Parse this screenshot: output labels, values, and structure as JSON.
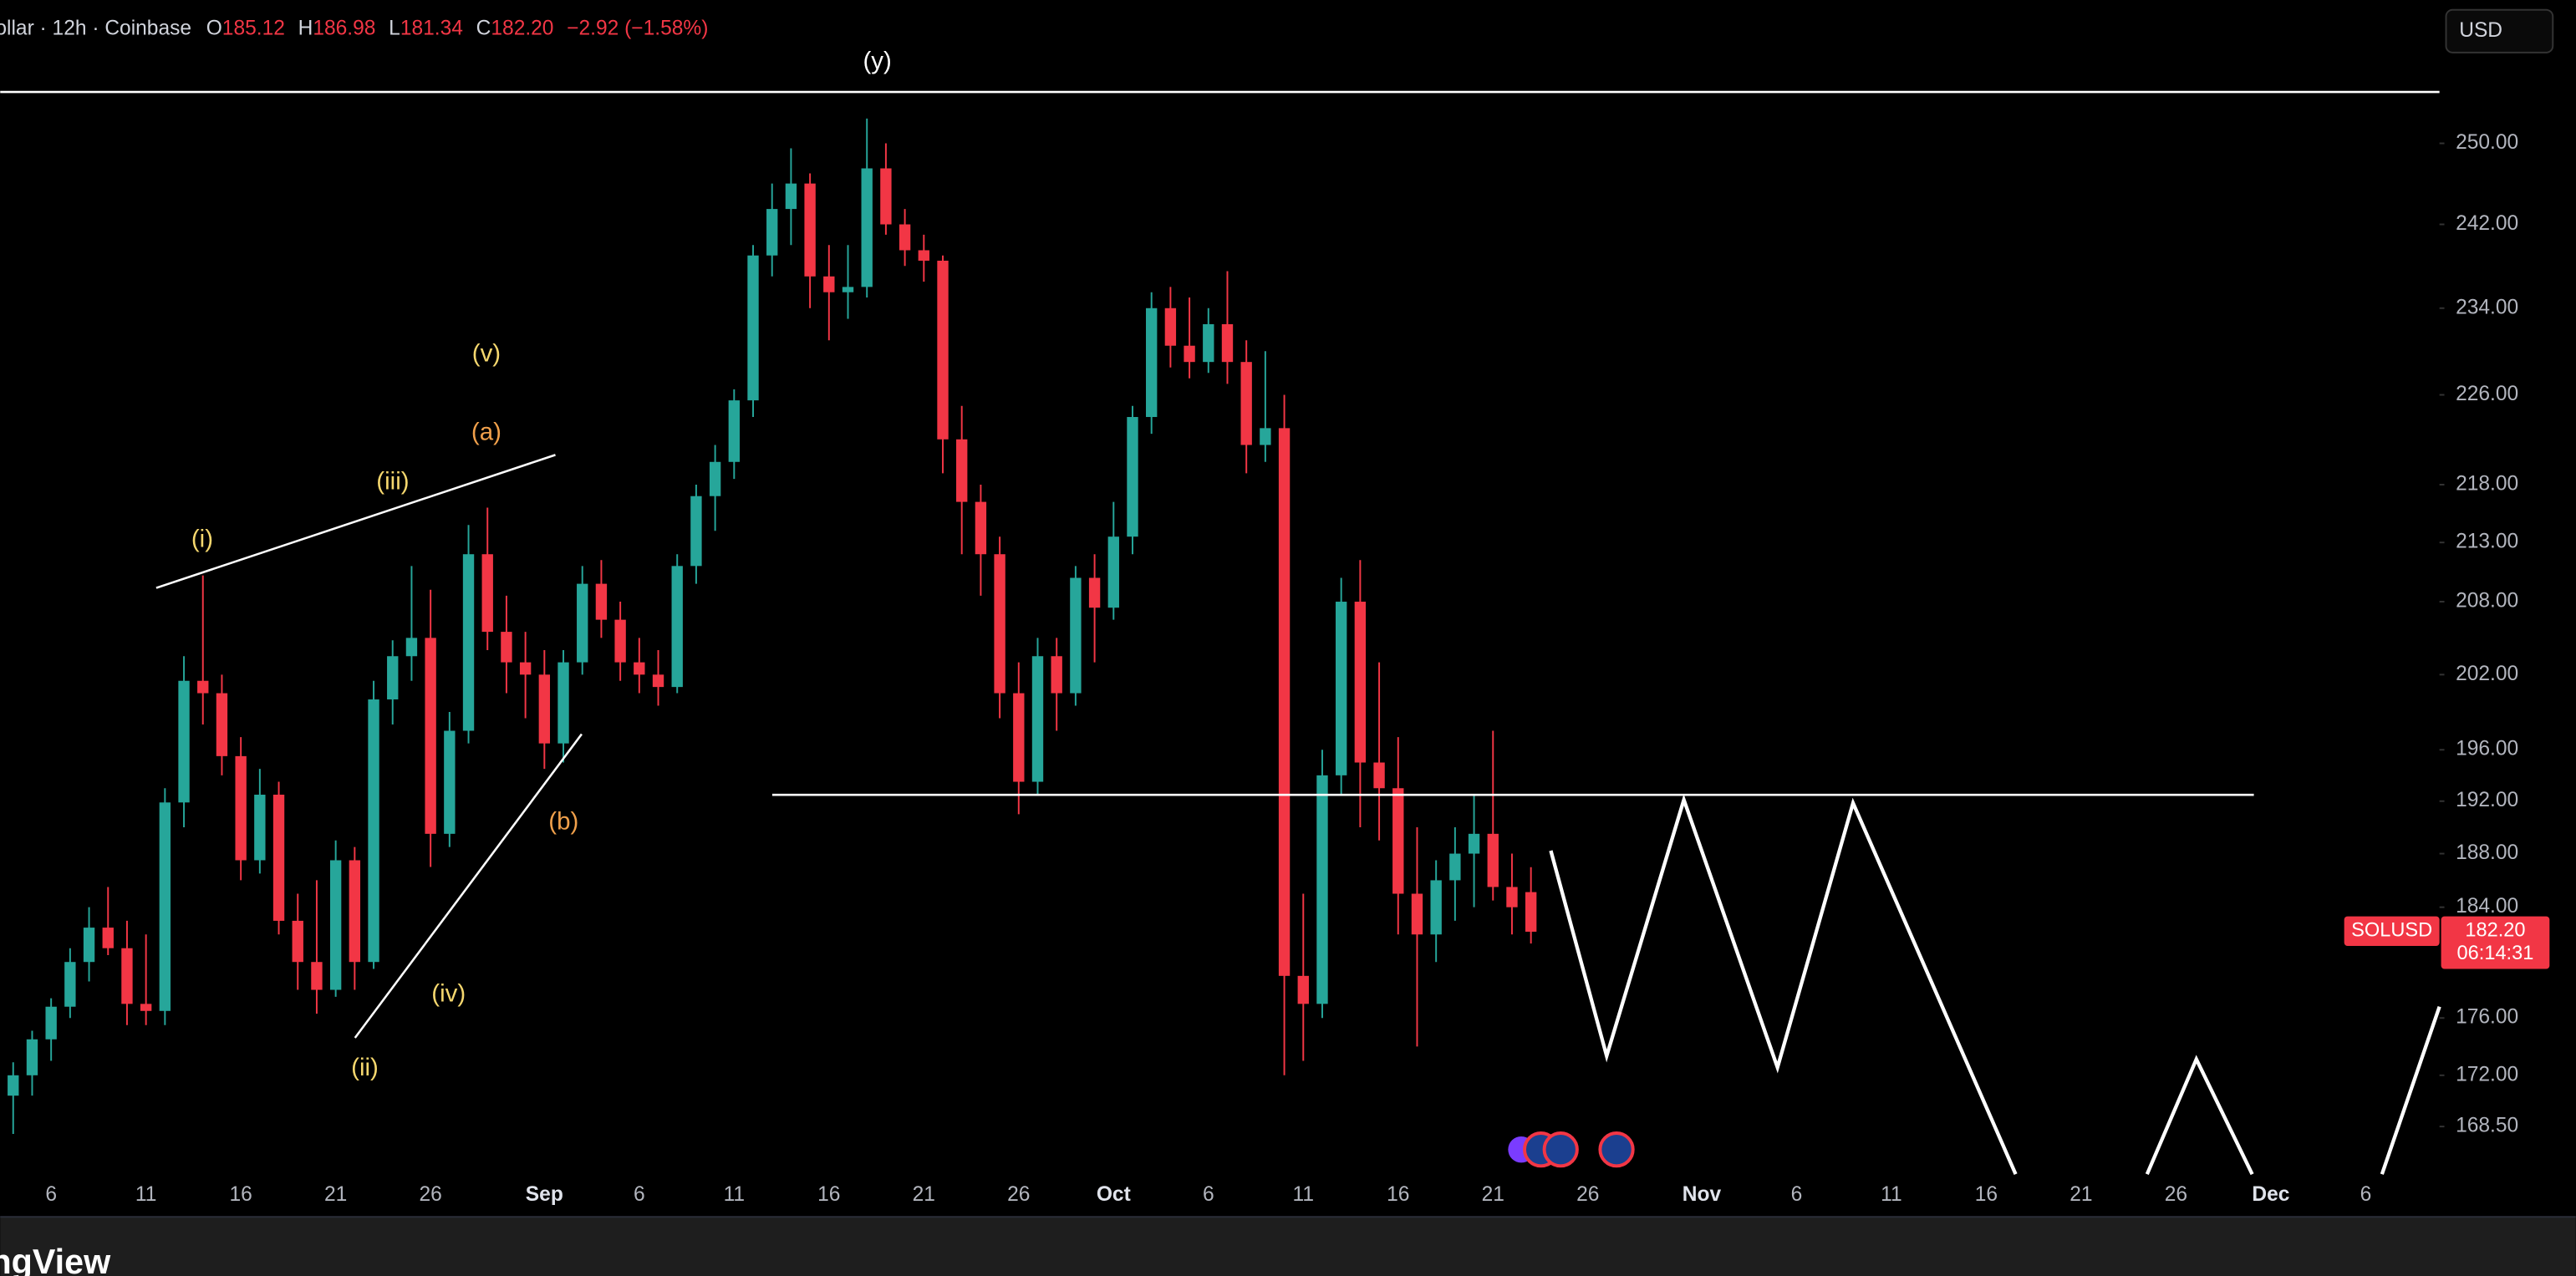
{
  "chart_data": {
    "type": "candlestick",
    "legend_text": {
      "symbol": "ollar · 12h · Coinbase",
      "o": "O",
      "open": "185.12",
      "h": "H",
      "high": "186.98",
      "l": "L",
      "low": "181.34",
      "c": "C",
      "close": "182.20",
      "change": "−2.92 (−1.58%)"
    },
    "currency": "USD",
    "price_tag": {
      "symbol": "SOLUSD",
      "price": "182.20",
      "countdown": "06:14:31"
    },
    "annotations": [
      "(y)",
      "(v)",
      "(a)",
      "(iii)",
      "(i)",
      "(b)",
      "(iv)",
      "(ii)"
    ],
    "watermark": "ngView",
    "up_color": "#26a69a",
    "down_color": "#f23645",
    "log_scale": true,
    "grid": false,
    "ylim": [
      162.5,
      264.8
    ],
    "yticks": [
      {
        "value": 250,
        "label": "250.00"
      },
      {
        "value": 242,
        "label": "242.00"
      },
      {
        "value": 234,
        "label": "234.00"
      },
      {
        "value": 226,
        "label": "226.00"
      },
      {
        "value": 218,
        "label": "218.00"
      },
      {
        "value": 213,
        "label": "213.00"
      },
      {
        "value": 208,
        "label": "208.00"
      },
      {
        "value": 202,
        "label": "202.00"
      },
      {
        "value": 196,
        "label": "196.00"
      },
      {
        "value": 192,
        "label": "192.00"
      },
      {
        "value": 188,
        "label": "188.00"
      },
      {
        "value": 184,
        "label": "184.00"
      },
      {
        "value": 176,
        "label": "176.00"
      },
      {
        "value": 172,
        "label": "172.00"
      },
      {
        "value": 168.5,
        "label": "168.50"
      }
    ],
    "xticks": [
      "6",
      "11",
      "16",
      "21",
      "26",
      "Sep",
      "6",
      "11",
      "16",
      "21",
      "26",
      "Oct",
      "6",
      "11",
      "16",
      "21",
      "26",
      "Nov",
      "6",
      "11",
      "16",
      "21",
      "26",
      "Dec",
      "6"
    ],
    "candles": [
      [
        170.6,
        172.9,
        168,
        172.0
      ],
      [
        172.0,
        175.1,
        170.6,
        174.5
      ],
      [
        174.5,
        177.4,
        173.0,
        176.8
      ],
      [
        176.8,
        181.0,
        176.0,
        180.0
      ],
      [
        180.0,
        184.0,
        178.6,
        182.5
      ],
      [
        182.5,
        185.5,
        180.5,
        181.0
      ],
      [
        181.0,
        183.0,
        175.5,
        177.0
      ],
      [
        177,
        182,
        175.5,
        176.5
      ],
      [
        176.5,
        193,
        175.5,
        191.9
      ],
      [
        191.9,
        203.5,
        190,
        201.5
      ],
      [
        201.5,
        210.2,
        198,
        200.5
      ],
      [
        200.5,
        202,
        194,
        195.5
      ],
      [
        195.5,
        197,
        186,
        187.5
      ],
      [
        187.5,
        194.5,
        186.5,
        192.5
      ],
      [
        192.5,
        193.5,
        182,
        183
      ],
      [
        183,
        185,
        178,
        180
      ],
      [
        180,
        186,
        176.3,
        178
      ],
      [
        178,
        189,
        177.5,
        187.5
      ],
      [
        187.5,
        188.5,
        178,
        180
      ],
      [
        180,
        201.5,
        179.5,
        200
      ],
      [
        200,
        204.8,
        198,
        203.5
      ],
      [
        203.5,
        211,
        201.5,
        205
      ],
      [
        205,
        209,
        187,
        189.5
      ],
      [
        189.5,
        199,
        188.5,
        197.5
      ],
      [
        197.5,
        214.5,
        196.5,
        212
      ],
      [
        212,
        216,
        204,
        205.5
      ],
      [
        205.5,
        208.5,
        200.5,
        203
      ],
      [
        203,
        205.5,
        198.5,
        202
      ],
      [
        202,
        204,
        194.5,
        196.5
      ],
      [
        196.5,
        204,
        195,
        203
      ],
      [
        203,
        211,
        202,
        209.5
      ],
      [
        209.5,
        211.5,
        205,
        206.5
      ],
      [
        206.5,
        208,
        201.5,
        203
      ],
      [
        203,
        205,
        200.5,
        202
      ],
      [
        202,
        204,
        199.5,
        201
      ],
      [
        201,
        212,
        200.5,
        211
      ],
      [
        211,
        218,
        209.5,
        217
      ],
      [
        217,
        221.5,
        214,
        220
      ],
      [
        220,
        226.5,
        218.5,
        225.5
      ],
      [
        225.5,
        240,
        224,
        239
      ],
      [
        239,
        246,
        237,
        243.5
      ],
      [
        243.5,
        249.5,
        240,
        246
      ],
      [
        246,
        247,
        234,
        237
      ],
      [
        237,
        240,
        231,
        235.5
      ],
      [
        235.5,
        240,
        233,
        236
      ],
      [
        236,
        252.5,
        235,
        247.5
      ],
      [
        247.5,
        250,
        241,
        242
      ],
      [
        242,
        243.5,
        238,
        239.5
      ],
      [
        239.5,
        241,
        236.5,
        238.5
      ],
      [
        238.5,
        239,
        219,
        222
      ],
      [
        222,
        225,
        212,
        216.5
      ],
      [
        216.5,
        218,
        208.5,
        212
      ],
      [
        212,
        213.5,
        198.5,
        200.5
      ],
      [
        200.5,
        203,
        191,
        193.5
      ],
      [
        193.5,
        205,
        192.5,
        203.5
      ],
      [
        203.5,
        205,
        197.5,
        200.5
      ],
      [
        200.5,
        211,
        199.5,
        210
      ],
      [
        210,
        212,
        203,
        207.5
      ],
      [
        207.5,
        216.5,
        206.5,
        213.5
      ],
      [
        213.5,
        225,
        212,
        224
      ],
      [
        224,
        235.5,
        222.5,
        234
      ],
      [
        234,
        236,
        228.5,
        230.5
      ],
      [
        230.5,
        235,
        227.5,
        229
      ],
      [
        229,
        234,
        228,
        232.5
      ],
      [
        232.5,
        237.5,
        227,
        229
      ],
      [
        229,
        231,
        219,
        221.5
      ],
      [
        221.5,
        230,
        220,
        223
      ],
      [
        223,
        226,
        172,
        179
      ],
      [
        179,
        185,
        173,
        177
      ],
      [
        177,
        196,
        176,
        194
      ],
      [
        194,
        210,
        192.5,
        208
      ],
      [
        208,
        211.5,
        190,
        195
      ],
      [
        195,
        203,
        189,
        193
      ],
      [
        193,
        197,
        182,
        185
      ],
      [
        185,
        190,
        174,
        182
      ],
      [
        182,
        187.5,
        180,
        186
      ],
      [
        186,
        190,
        183,
        188
      ],
      [
        188,
        192.5,
        184,
        189.5
      ],
      [
        189.5,
        197.5,
        184.5,
        185.5
      ],
      [
        185.5,
        188,
        182,
        184
      ],
      [
        185.12,
        186.98,
        181.34,
        182.2
      ]
    ]
  }
}
